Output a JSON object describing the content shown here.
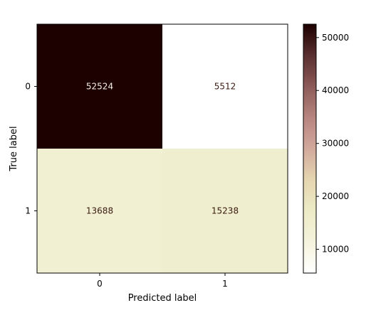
{
  "chart_data": {
    "type": "heatmap",
    "title": "",
    "xlabel": "Predicted label",
    "ylabel": "True label",
    "x_categories": [
      "0",
      "1"
    ],
    "y_categories": [
      "0",
      "1"
    ],
    "values": [
      [
        52524,
        5512
      ],
      [
        13688,
        15238
      ]
    ],
    "cell_labels": [
      [
        "52524",
        "5512"
      ],
      [
        "13688",
        "15238"
      ]
    ],
    "colorbar": {
      "min": 5512,
      "max": 52524,
      "ticks": [
        10000,
        20000,
        30000,
        40000,
        50000
      ],
      "tick_labels": [
        "10000",
        "20000",
        "30000",
        "40000",
        "50000"
      ]
    },
    "colormap": [
      "#ffffff",
      "#f5f3dc",
      "#ecebc6",
      "#e5d6b0",
      "#d2a99d",
      "#b8857f",
      "#8c5a58",
      "#5a2f30",
      "#1d0000"
    ],
    "grid": false
  }
}
